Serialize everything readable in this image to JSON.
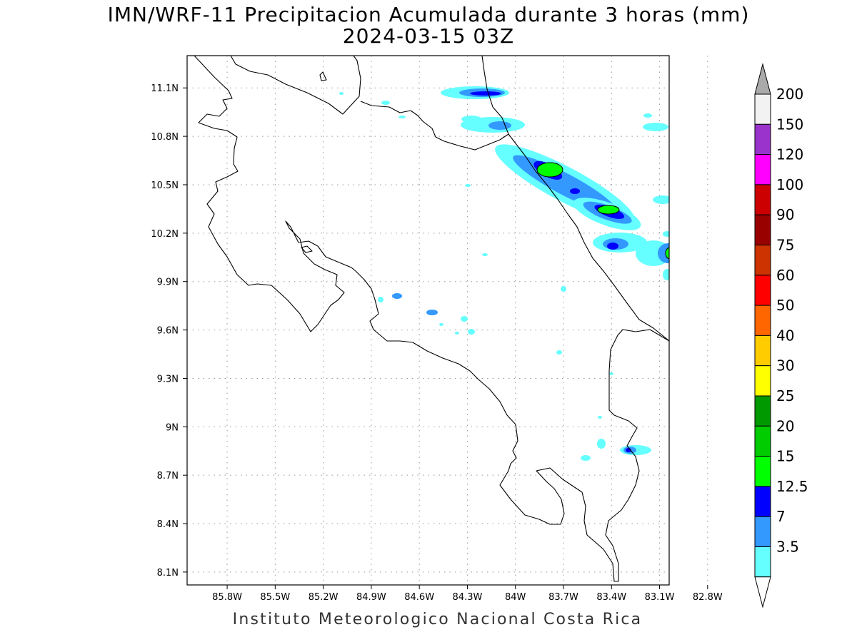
{
  "header": {
    "title": "IMN/WRF-11 Precipitacion Acumulada durante 3 horas (mm)",
    "subtitle": "2024-03-15 03Z"
  },
  "footer": {
    "credit": "Instituto Meteorologico Nacional Costa Rica"
  },
  "map": {
    "lat_range": [
      8.02,
      11.3
    ],
    "lon_range": [
      -86.05,
      -83.04
    ],
    "lat_labels": [
      {
        "value": 11.1,
        "label": "11.1N"
      },
      {
        "value": 10.8,
        "label": "10.8N"
      },
      {
        "value": 10.5,
        "label": "10.5N"
      },
      {
        "value": 10.2,
        "label": "10.2N"
      },
      {
        "value": 9.9,
        "label": "9.9N"
      },
      {
        "value": 9.6,
        "label": "9.6N"
      },
      {
        "value": 9.3,
        "label": "9.3N"
      },
      {
        "value": 9.0,
        "label": "9N"
      },
      {
        "value": 8.7,
        "label": "8.7N"
      },
      {
        "value": 8.4,
        "label": "8.4N"
      },
      {
        "value": 8.1,
        "label": "8.1N"
      }
    ],
    "lon_labels": [
      {
        "value": -85.8,
        "label": "85.8W"
      },
      {
        "value": -85.5,
        "label": "85.5W"
      },
      {
        "value": -85.2,
        "label": "85.2W"
      },
      {
        "value": -84.9,
        "label": "84.9W"
      },
      {
        "value": -84.6,
        "label": "84.6W"
      },
      {
        "value": -84.3,
        "label": "84.3W"
      },
      {
        "value": -84.0,
        "label": "84W"
      },
      {
        "value": -83.7,
        "label": "83.7W"
      },
      {
        "value": -83.4,
        "label": "83.4W"
      },
      {
        "value": -83.1,
        "label": "83.1W"
      },
      {
        "value": -82.8,
        "label": "82.8W"
      }
    ],
    "grid": true
  },
  "colorbar": {
    "levels": [
      {
        "value": "3.5",
        "color": "#66ffff"
      },
      {
        "value": "7",
        "color": "#3399ff"
      },
      {
        "value": "12.5",
        "color": "#0000ff"
      },
      {
        "value": "15",
        "color": "#00ff00"
      },
      {
        "value": "20",
        "color": "#00cc00"
      },
      {
        "value": "25",
        "color": "#009900"
      },
      {
        "value": "30",
        "color": "#ffff00"
      },
      {
        "value": "40",
        "color": "#ffcc00"
      },
      {
        "value": "50",
        "color": "#ff6600"
      },
      {
        "value": "60",
        "color": "#ff0000"
      },
      {
        "value": "75",
        "color": "#cc3300"
      },
      {
        "value": "90",
        "color": "#990000"
      },
      {
        "value": "100",
        "color": "#cc0000"
      },
      {
        "value": "120",
        "color": "#ff00ff"
      },
      {
        "value": "150",
        "color": "#9933cc"
      },
      {
        "value": "200",
        "color": "#f2f2f2"
      }
    ],
    "top_arrow_color": "#aaaaaa"
  }
}
